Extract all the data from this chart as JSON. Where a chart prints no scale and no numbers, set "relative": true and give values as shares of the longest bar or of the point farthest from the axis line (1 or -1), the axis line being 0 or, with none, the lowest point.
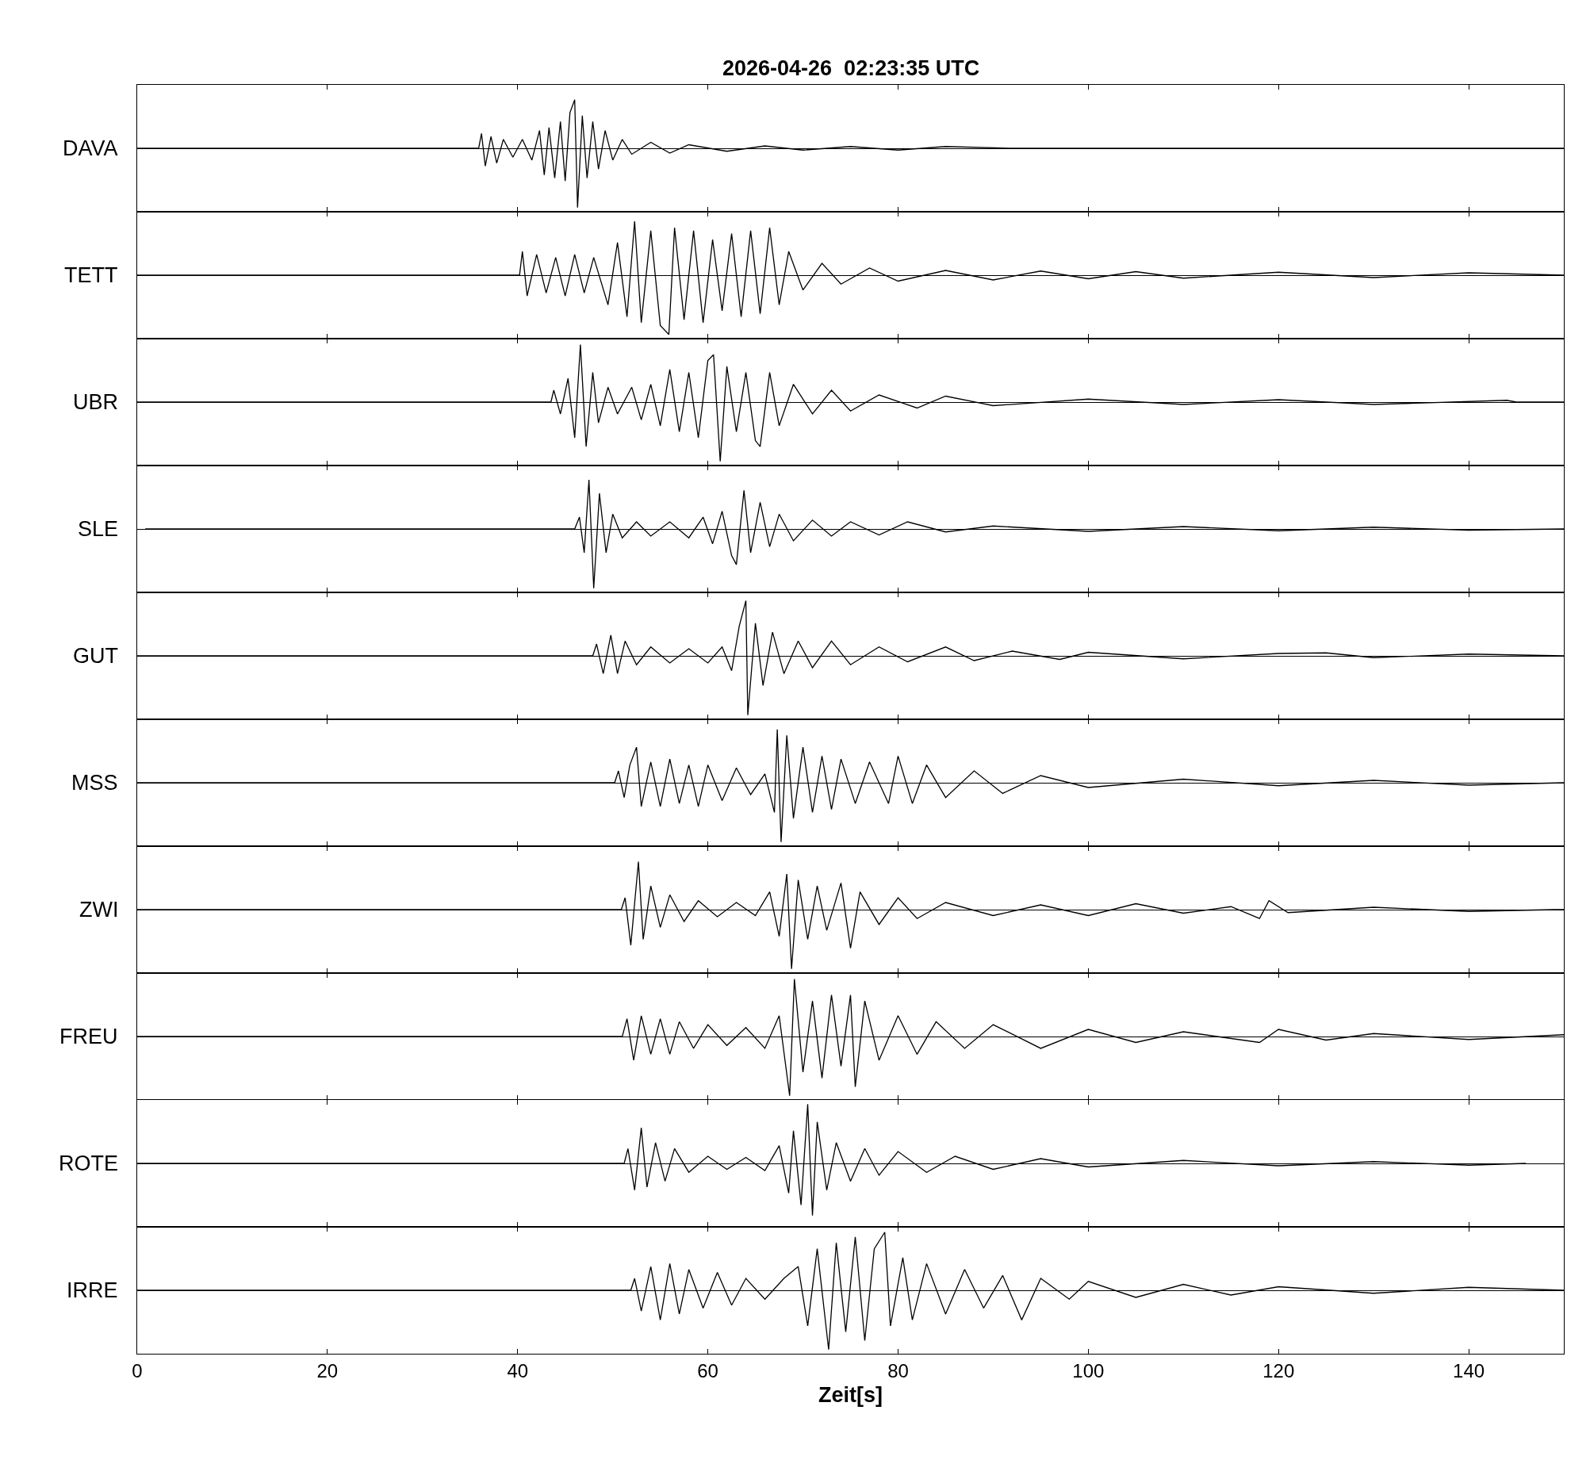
{
  "chart_data": [
    {
      "type": "line",
      "title": "2026-04-26  02:23:35 UTC",
      "ylabel": "DAVA",
      "relative": true,
      "xlim": [
        0,
        150
      ],
      "xticks": [
        0,
        20,
        40,
        60,
        80,
        100,
        120,
        140
      ],
      "tick_labels": false,
      "x": [
        0,
        35.9,
        36.2,
        36.6,
        37.2,
        37.8,
        38.5,
        39.5,
        40.5,
        41.5,
        42.3,
        42.8,
        43.3,
        43.9,
        44.5,
        45.0,
        45.5,
        46.0,
        46.3,
        46.8,
        47.3,
        47.9,
        48.5,
        49.2,
        50,
        51,
        52,
        54,
        56,
        58,
        62,
        66,
        70,
        75,
        80,
        85,
        92,
        150
      ],
      "series": [
        {
          "color": "#000000",
          "values": [
            0,
            0,
            0.25,
            -0.3,
            0.2,
            -0.25,
            0.15,
            -0.15,
            0.15,
            -0.2,
            0.3,
            -0.45,
            0.35,
            -0.5,
            0.45,
            -0.55,
            0.6,
            0.82,
            -1,
            0.55,
            -0.5,
            0.45,
            -0.35,
            0.3,
            -0.2,
            0.15,
            -0.1,
            0.1,
            -0.08,
            0.06,
            -0.05,
            0.04,
            -0.03,
            0.03,
            -0.03,
            0.03,
            0,
            0
          ]
        }
      ]
    },
    {
      "type": "line",
      "ylabel": "TETT",
      "relative": true,
      "xlim": [
        0,
        150
      ],
      "xticks": [
        0,
        20,
        40,
        60,
        80,
        100,
        120,
        140
      ],
      "tick_labels": false,
      "x": [
        0,
        40.2,
        40.5,
        41,
        42,
        43,
        44,
        45,
        46,
        47,
        48,
        49.5,
        50.5,
        51.5,
        52.3,
        53,
        54,
        55,
        55.9,
        56.5,
        57.5,
        58.5,
        59.5,
        60.5,
        61.5,
        62.5,
        63.5,
        64.5,
        65.5,
        66.5,
        67.5,
        68.5,
        70,
        72,
        74,
        77,
        80,
        85,
        90,
        95,
        100,
        105,
        110,
        120,
        130,
        140,
        150
      ],
      "series": [
        {
          "color": "#000000",
          "values": [
            0,
            0,
            0.4,
            -0.35,
            0.35,
            -0.3,
            0.3,
            -0.35,
            0.35,
            -0.3,
            0.3,
            -0.5,
            0.55,
            -0.7,
            0.91,
            -0.8,
            0.75,
            -0.85,
            -1,
            0.8,
            -0.75,
            0.75,
            -0.8,
            0.6,
            -0.6,
            0.7,
            -0.7,
            0.75,
            -0.65,
            0.8,
            -0.5,
            0.4,
            -0.25,
            0.2,
            -0.15,
            0.12,
            -0.1,
            0.08,
            -0.08,
            0.07,
            -0.06,
            0.06,
            -0.05,
            0.05,
            -0.04,
            0.04,
            0
          ]
        }
      ]
    },
    {
      "type": "line",
      "ylabel": "UBR",
      "relative": true,
      "xlim": [
        0,
        150
      ],
      "xticks": [
        0,
        20,
        40,
        60,
        80,
        100,
        120,
        140
      ],
      "tick_labels": false,
      "x": [
        0,
        43.5,
        43.8,
        44.5,
        45.3,
        46,
        46.6,
        47.2,
        47.9,
        48.5,
        49.5,
        50.5,
        52,
        53,
        54,
        55,
        56,
        57,
        58,
        59,
        60,
        60.6,
        61.3,
        62,
        63,
        64,
        65,
        65.5,
        66.5,
        67.5,
        69,
        71,
        73,
        75,
        78,
        82,
        85,
        90,
        100,
        110,
        120,
        130,
        144,
        145,
        150
      ],
      "series": [
        {
          "color": "#000000",
          "values": [
            0,
            0,
            0.2,
            -0.2,
            0.4,
            -0.6,
            0.97,
            -0.75,
            0.5,
            -0.35,
            0.25,
            -0.2,
            0.25,
            -0.3,
            0.3,
            -0.4,
            0.55,
            -0.5,
            0.5,
            -0.6,
            0.7,
            0.8,
            -1,
            0.6,
            -0.5,
            0.5,
            -0.65,
            -0.75,
            0.5,
            -0.4,
            0.3,
            -0.2,
            0.2,
            -0.15,
            0.12,
            -0.1,
            0.1,
            -0.06,
            0.05,
            -0.04,
            0.04,
            -0.04,
            0.03,
            0,
            0
          ]
        }
      ]
    },
    {
      "type": "line",
      "ylabel": "SLE",
      "relative": true,
      "xlim": [
        0,
        150
      ],
      "xticks": [
        0,
        20,
        40,
        60,
        80,
        100,
        120,
        140
      ],
      "tick_labels": false,
      "x": [
        0.85,
        46,
        46.5,
        47,
        47.5,
        48,
        48.6,
        49.3,
        50,
        51,
        52.5,
        54,
        56,
        58,
        59.5,
        60.5,
        61.5,
        62.5,
        63,
        63.8,
        64.5,
        65.5,
        66.5,
        67.5,
        69,
        71,
        73,
        75,
        78,
        81,
        85,
        90,
        100,
        110,
        120,
        130,
        140,
        150
      ],
      "series": [
        {
          "color": "#000000",
          "values": [
            0,
            0,
            0.2,
            -0.4,
            0.83,
            -1,
            0.6,
            -0.4,
            0.25,
            -0.15,
            0.12,
            -0.12,
            0.12,
            -0.15,
            0.2,
            -0.25,
            0.3,
            -0.45,
            -0.6,
            0.65,
            -0.4,
            0.45,
            -0.3,
            0.25,
            -0.2,
            0.15,
            -0.12,
            0.12,
            -0.1,
            0.12,
            -0.05,
            0.05,
            -0.04,
            0.04,
            -0.03,
            0.03,
            -0.02,
            0
          ]
        }
      ]
    },
    {
      "type": "line",
      "ylabel": "GUT",
      "relative": true,
      "xlim": [
        0,
        150
      ],
      "xticks": [
        0,
        20,
        40,
        60,
        80,
        100,
        120,
        140
      ],
      "tick_labels": false,
      "x": [
        0,
        47.9,
        48.3,
        49,
        49.8,
        50.5,
        51.3,
        52.5,
        54,
        56,
        58,
        60,
        61.5,
        62.5,
        63.3,
        64,
        64.2,
        65,
        65.8,
        66.8,
        68,
        69.5,
        71,
        73,
        75,
        78,
        81,
        85,
        88,
        92,
        97,
        100,
        110,
        120,
        125,
        130,
        140,
        150
      ],
      "series": [
        {
          "color": "#000000",
          "values": [
            0,
            0,
            0.2,
            -0.3,
            0.35,
            -0.3,
            0.25,
            -0.15,
            0.15,
            -0.12,
            0.12,
            -0.12,
            0.15,
            -0.25,
            0.5,
            0.93,
            -1,
            0.55,
            -0.5,
            0.4,
            -0.3,
            0.25,
            -0.2,
            0.25,
            -0.15,
            0.15,
            -0.1,
            0.15,
            -0.08,
            0.08,
            -0.06,
            0.06,
            -0.05,
            0.04,
            0.05,
            -0.03,
            0.03,
            0
          ]
        }
      ]
    },
    {
      "type": "line",
      "ylabel": "MSS",
      "relative": true,
      "xlim": [
        0,
        150
      ],
      "xticks": [
        0,
        20,
        40,
        60,
        80,
        100,
        120,
        140
      ],
      "tick_labels": false,
      "x": [
        0,
        50.2,
        50.6,
        51.2,
        51.8,
        52.5,
        53,
        54,
        55,
        56,
        57,
        58,
        59,
        60,
        61.5,
        63,
        64.5,
        66,
        67,
        67.3,
        67.7,
        68.3,
        69,
        70,
        71,
        72,
        73,
        74,
        75.5,
        77,
        79,
        80,
        81.5,
        83,
        85,
        88,
        91,
        95,
        100,
        110,
        120,
        130,
        140,
        150
      ],
      "series": [
        {
          "color": "#000000",
          "values": [
            0,
            0,
            0.2,
            -0.25,
            0.3,
            0.6,
            -0.4,
            0.35,
            -0.4,
            0.4,
            -0.35,
            0.3,
            -0.4,
            0.3,
            -0.3,
            0.25,
            -0.2,
            0.15,
            -0.5,
            0.9,
            -1,
            0.8,
            -0.6,
            0.6,
            -0.5,
            0.45,
            -0.45,
            0.4,
            -0.35,
            0.35,
            -0.35,
            0.45,
            -0.35,
            0.3,
            -0.25,
            0.2,
            -0.18,
            0.12,
            -0.08,
            0.06,
            -0.05,
            0.04,
            -0.04,
            0
          ]
        }
      ]
    },
    {
      "type": "line",
      "ylabel": "ZWI",
      "relative": true,
      "xlim": [
        0,
        150
      ],
      "xticks": [
        0,
        20,
        40,
        60,
        80,
        100,
        120,
        140
      ],
      "tick_labels": false,
      "x": [
        0,
        50.9,
        51.3,
        51.9,
        52.7,
        53.2,
        54,
        55,
        56,
        57.5,
        59,
        61,
        63,
        65,
        66.5,
        67.5,
        68.3,
        68.8,
        69.5,
        70.5,
        71.5,
        72.5,
        74,
        75,
        76,
        78,
        80,
        82,
        85,
        90,
        95,
        100,
        105,
        110,
        115,
        118,
        119,
        121,
        130,
        140,
        149,
        150
      ],
      "series": [
        {
          "color": "#000000",
          "values": [
            0,
            0,
            0.2,
            -0.6,
            0.81,
            -0.5,
            0.4,
            -0.3,
            0.25,
            -0.2,
            0.15,
            -0.12,
            0.12,
            -0.1,
            0.3,
            -0.45,
            0.6,
            -1,
            0.5,
            -0.5,
            0.4,
            -0.35,
            0.45,
            -0.65,
            0.3,
            -0.25,
            0.2,
            -0.15,
            0.12,
            -0.1,
            0.08,
            -0.1,
            0.1,
            -0.06,
            0.05,
            -0.15,
            0.15,
            -0.05,
            0.04,
            -0.03,
            0,
            0
          ]
        }
      ]
    },
    {
      "type": "line",
      "ylabel": "FREU",
      "relative": true,
      "xlim": [
        0,
        150
      ],
      "xticks": [
        0,
        20,
        40,
        60,
        80,
        100,
        120,
        140
      ],
      "tick_labels": false,
      "x": [
        0,
        51,
        51.5,
        52.2,
        53,
        54,
        55,
        56,
        57,
        58.5,
        60,
        62,
        64,
        66,
        67.5,
        68.6,
        69.1,
        70,
        71,
        72,
        73,
        74,
        75,
        75.5,
        76.5,
        78,
        80,
        82,
        84,
        87,
        90,
        95,
        100,
        105,
        110,
        118,
        120,
        125,
        130,
        140,
        150
      ],
      "series": [
        {
          "color": "#000000",
          "values": [
            0,
            0,
            0.3,
            -0.4,
            0.35,
            -0.3,
            0.3,
            -0.3,
            0.25,
            -0.2,
            0.2,
            -0.15,
            0.15,
            -0.2,
            0.35,
            -1,
            0.97,
            -0.6,
            0.6,
            -0.7,
            0.7,
            -0.5,
            0.7,
            -0.85,
            0.6,
            -0.4,
            0.35,
            -0.3,
            0.25,
            -0.2,
            0.2,
            -0.2,
            0.12,
            -0.1,
            0.08,
            -0.1,
            0.12,
            -0.06,
            0.05,
            -0.05,
            0.03
          ]
        }
      ]
    },
    {
      "type": "line",
      "ylabel": "ROTE",
      "relative": true,
      "xlim": [
        0,
        150
      ],
      "xticks": [
        0,
        20,
        40,
        60,
        80,
        100,
        120,
        140
      ],
      "tick_labels": false,
      "x": [
        0,
        51.2,
        51.6,
        52.3,
        53,
        53.6,
        54.5,
        55.5,
        56.5,
        58,
        60,
        62,
        64,
        66,
        67.5,
        68.5,
        69,
        69.8,
        70.5,
        71,
        71.5,
        72.5,
        73.5,
        75,
        76.5,
        78,
        80,
        83,
        86,
        90,
        95,
        100,
        110,
        120,
        130,
        140,
        146
      ],
      "series": [
        {
          "color": "#000000",
          "values": [
            0,
            0,
            0.25,
            -0.45,
            0.6,
            -0.4,
            0.35,
            -0.3,
            0.25,
            -0.15,
            0.12,
            -0.1,
            0.1,
            -0.12,
            0.3,
            -0.5,
            0.55,
            -0.7,
            1,
            -0.88,
            0.7,
            -0.45,
            0.35,
            -0.3,
            0.25,
            -0.2,
            0.2,
            -0.15,
            0.12,
            -0.1,
            0.08,
            -0.06,
            0.05,
            -0.04,
            0.03,
            -0.03,
            0
          ]
        }
      ]
    },
    {
      "type": "line",
      "ylabel": "IRRE",
      "xlabel": "Zeit[s]",
      "relative": true,
      "xlim": [
        0,
        150
      ],
      "xticks": [
        0,
        20,
        40,
        60,
        80,
        100,
        120,
        140
      ],
      "tick_labels": "x",
      "x": [
        0,
        51.9,
        52.3,
        53,
        54,
        55,
        56,
        57,
        58,
        59.5,
        61,
        62.5,
        64,
        66,
        68,
        69.5,
        70.5,
        71.5,
        72.7,
        73.5,
        74.5,
        75.5,
        76.5,
        77.5,
        78.6,
        79.2,
        80.5,
        81.5,
        83,
        85,
        87,
        89,
        91,
        93,
        95,
        98,
        100,
        105,
        110,
        115,
        120,
        130,
        140,
        150
      ],
      "series": [
        {
          "color": "#000000",
          "values": [
            0,
            0,
            0.2,
            -0.35,
            0.4,
            -0.5,
            0.45,
            -0.4,
            0.35,
            -0.3,
            0.3,
            -0.25,
            0.2,
            -0.15,
            0.2,
            0.4,
            -0.6,
            0.7,
            -1,
            0.8,
            -0.7,
            0.9,
            -0.85,
            0.7,
            0.98,
            -0.6,
            0.55,
            -0.5,
            0.45,
            -0.4,
            0.35,
            -0.3,
            0.25,
            -0.5,
            0.2,
            -0.15,
            0.15,
            -0.12,
            0.1,
            -0.08,
            0.06,
            -0.05,
            0.05,
            0
          ]
        }
      ]
    }
  ]
}
